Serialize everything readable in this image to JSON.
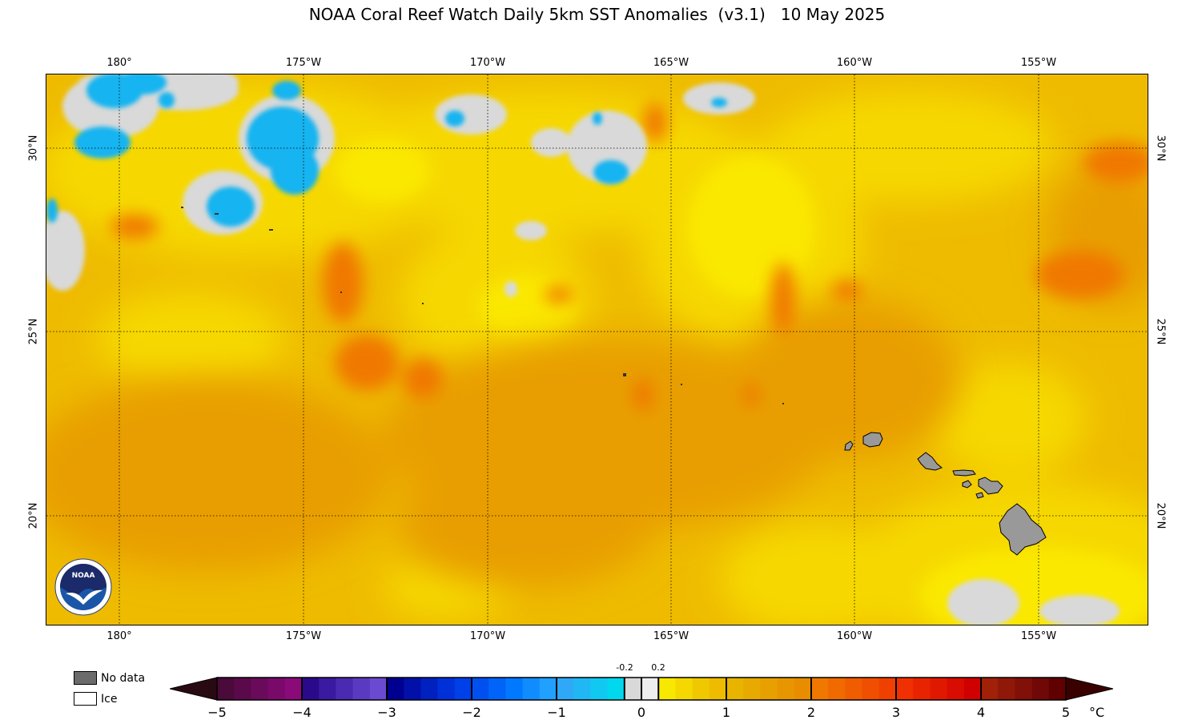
{
  "title": "NOAA Coral Reef Watch Daily 5km SST Anomalies  (v3.1)   10 May 2025",
  "map": {
    "lon_labels": [
      "180°",
      "175°W",
      "170°W",
      "165°W",
      "160°W",
      "155°W"
    ],
    "lat_labels": [
      "30°N",
      "25°N",
      "20°N"
    ],
    "lon_range": [
      178,
      152
    ],
    "lat_range": [
      17,
      32
    ],
    "colors": {
      "ocean_warm": "#f0c000",
      "land": "#999999",
      "no_data_cloud": "#d9d9d9",
      "cool_anomaly": "#14b4f0"
    }
  },
  "logo": {
    "name": "NOAA",
    "text": "NOAA"
  },
  "legend": {
    "no_data_label": "No data",
    "ice_label": "Ice"
  },
  "colorbar": {
    "ticks": [
      "−5",
      "−4",
      "−3",
      "−2",
      "−1",
      "0",
      "1",
      "2",
      "3",
      "4",
      "5"
    ],
    "small_ticks": [
      "-0.2",
      "0.2"
    ],
    "unit": "°C",
    "range": [
      -5,
      5
    ]
  }
}
